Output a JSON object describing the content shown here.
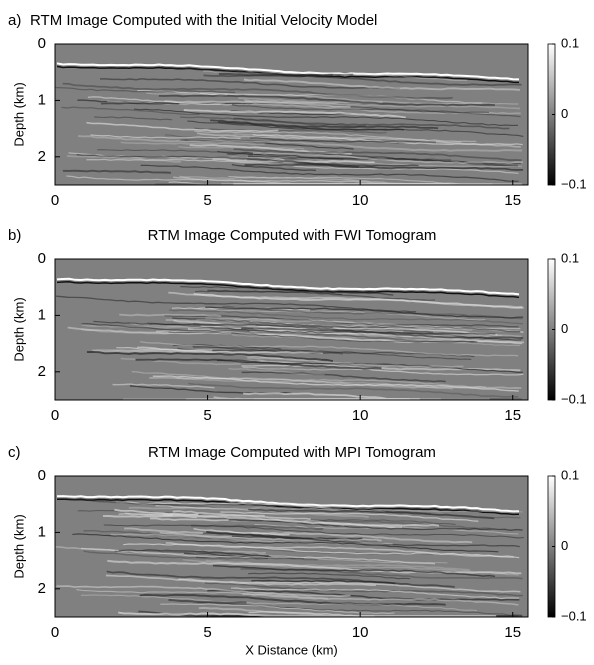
{
  "chart_data": [
    {
      "type": "image",
      "panel_label": "a)",
      "title": "RTM Image Computed with the Initial Velocity Model",
      "ylabel": "Depth (km)",
      "xlim": [
        0,
        15.5
      ],
      "ylim": [
        0,
        2.5
      ],
      "xticks": [
        0,
        5,
        10,
        15
      ],
      "yticks": [
        0,
        1,
        2
      ],
      "clim": [
        -0.1,
        0.1
      ],
      "cticks": [
        {
          "value": -0.1,
          "label": "−0.1"
        },
        0,
        0.1
      ]
    },
    {
      "type": "image",
      "panel_label": "b)",
      "title": "RTM Image Computed with FWI Tomogram",
      "ylabel": "Depth (km)",
      "xlim": [
        0,
        15.5
      ],
      "ylim": [
        0,
        2.5
      ],
      "xticks": [
        0,
        5,
        10,
        15
      ],
      "yticks": [
        0,
        1,
        2
      ],
      "clim": [
        -0.1,
        0.1
      ],
      "cticks": [
        {
          "value": -0.1,
          "label": "−0.1"
        },
        0,
        0.1
      ]
    },
    {
      "type": "image",
      "panel_label": "c)",
      "title": "RTM Image Computed with MPI Tomogram",
      "ylabel": "Depth (km)",
      "xlabel": "X Distance (km)",
      "xlim": [
        0,
        15.5
      ],
      "ylim": [
        0,
        2.5
      ],
      "xticks": [
        0,
        5,
        10,
        15
      ],
      "yticks": [
        0,
        1,
        2
      ],
      "clim": [
        -0.1,
        0.1
      ],
      "cticks": [
        {
          "value": -0.1,
          "label": "−0.1"
        },
        0,
        0.1
      ]
    }
  ]
}
